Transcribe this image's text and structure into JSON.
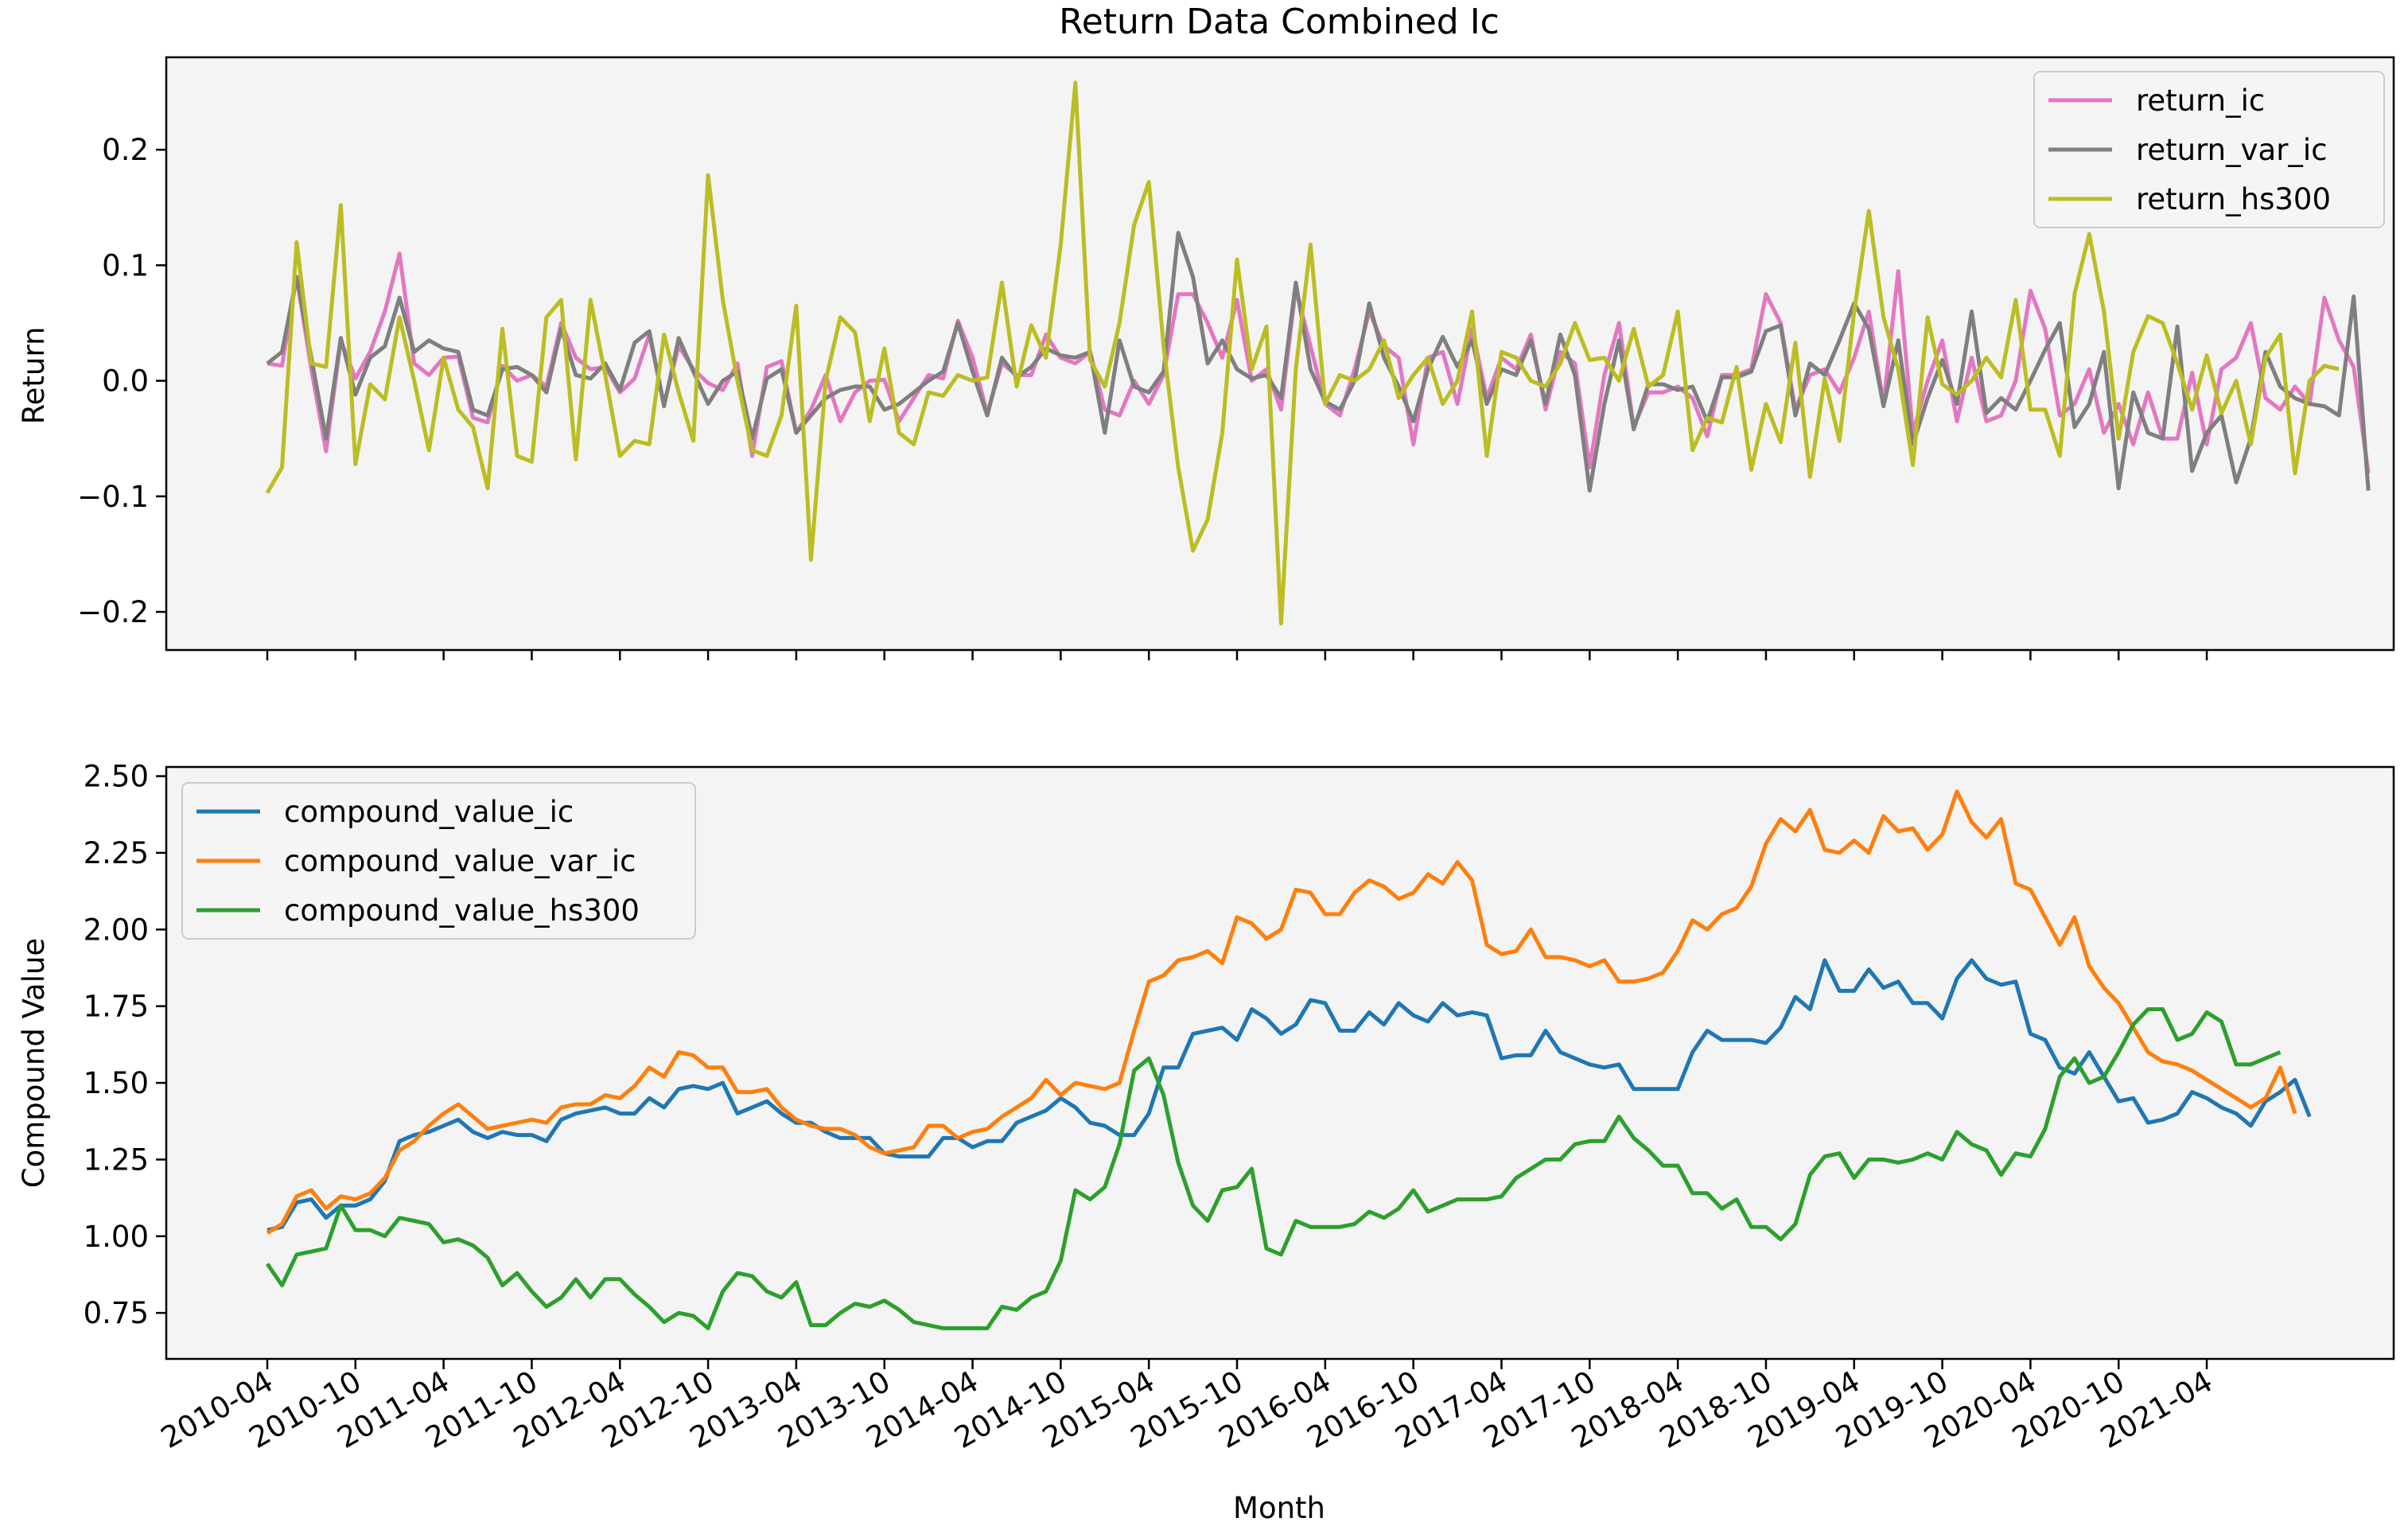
{
  "chart_data": {
    "type": "line",
    "x_axis_label": "Month",
    "x_tick_labels": [
      "2010-04",
      "2010-10",
      "2011-04",
      "2011-10",
      "2012-04",
      "2012-10",
      "2013-04",
      "2013-10",
      "2014-04",
      "2014-10",
      "2015-04",
      "2015-10",
      "2016-04",
      "2016-10",
      "2017-04",
      "2017-10",
      "2018-04",
      "2018-10",
      "2019-04",
      "2019-10",
      "2020-04",
      "2020-10",
      "2021-04"
    ],
    "x_start": "2010-04",
    "n_points": 140,
    "background": "#f4f4f4",
    "panels": [
      {
        "title": "Return Data Combined Ic",
        "ylabel": "Return",
        "ylim": [
          -0.233,
          0.28
        ],
        "yticks": [
          0.2,
          0.1,
          0.0,
          -0.1,
          -0.2
        ],
        "ytick_labels": [
          "0.2",
          "0.1",
          "0.0",
          "−0.1",
          "−0.2"
        ],
        "legend_position": "top-right",
        "series": [
          {
            "name": "return_ic",
            "color": "#e377c2",
            "values": [
              0.015,
              0.013,
              0.09,
              0.01,
              -0.061,
              0.035,
              0.002,
              0.025,
              0.06,
              0.11,
              0.015,
              0.005,
              0.02,
              0.021,
              -0.032,
              -0.036,
              0.013,
              0,
              0.005,
              -0.005,
              0.05,
              0.02,
              0.01,
              0.012,
              -0.01,
              0.002,
              0.04,
              -0.02,
              0.03,
              0.01,
              -0.002,
              -0.008,
              0.015,
              -0.065,
              0.012,
              0.017,
              -0.045,
              -0.025,
              0.005,
              -0.035,
              -0.01,
              0,
              0.001,
              -0.035,
              -0.015,
              0.005,
              0.002,
              0.052,
              0.02,
              -0.028,
              0.015,
              0.005,
              0.005,
              0.04,
              0.02,
              0.015,
              0.025,
              -0.025,
              -0.03,
              0,
              -0.02,
              0.005,
              0.075,
              0.075,
              0.05,
              0.02,
              0.07,
              0,
              0.01,
              -0.025,
              0.08,
              0.03,
              -0.02,
              -0.03,
              0.01,
              0.06,
              0.03,
              0.02,
              -0.055,
              0.02,
              0.025,
              -0.02,
              0.045,
              -0.015,
              0.02,
              0.01,
              0.04,
              -0.025,
              0.025,
              0.015,
              -0.075,
              0.005,
              0.05,
              -0.04,
              -0.01,
              -0.01,
              -0.005,
              -0.015,
              -0.048,
              0.005,
              0.005,
              0.01,
              0.075,
              0.05,
              -0.025,
              0.005,
              0.01,
              -0.01,
              0.02,
              0.06,
              -0.02,
              0.095,
              -0.045,
              0,
              0.035,
              -0.035,
              0.02,
              -0.035,
              -0.03,
              0,
              0.078,
              0.045,
              -0.03,
              -0.02,
              0.01,
              -0.045,
              -0.02,
              -0.055,
              -0.01,
              -0.05,
              -0.05,
              0.007,
              -0.055,
              0.01,
              0.02,
              0.05,
              -0.015,
              -0.025,
              -0.005,
              -0.02,
              0.072,
              0.035,
              0.012,
              -0.08
            ]
          },
          {
            "name": "return_var_ic",
            "color": "#7f7f7f",
            "values": [
              0.015,
              0.025,
              0.09,
              0.02,
              -0.05,
              0.037,
              -0.012,
              0.02,
              0.03,
              0.072,
              0.025,
              0.035,
              0.028,
              0.025,
              -0.025,
              -0.03,
              0.01,
              0.012,
              0.005,
              -0.01,
              0.045,
              0.005,
              0.002,
              0.015,
              -0.008,
              0.033,
              0.043,
              -0.022,
              0.037,
              0.008,
              -0.02,
              0.0,
              0.008,
              -0.05,
              0.002,
              0.01,
              -0.045,
              -0.03,
              -0.015,
              -0.008,
              -0.005,
              -0.005,
              -0.025,
              -0.02,
              -0.01,
              0.0,
              0.008,
              0.05,
              0.008,
              -0.03,
              0.02,
              0.003,
              0.012,
              0.028,
              0.022,
              0.02,
              0.025,
              -0.045,
              0.035,
              -0.005,
              -0.01,
              0.008,
              0.128,
              0.09,
              0.015,
              0.035,
              0.01,
              0.002,
              0.005,
              -0.015,
              0.085,
              0.01,
              -0.018,
              -0.025,
              0.0,
              0.067,
              0.02,
              -0.005,
              -0.035,
              0.01,
              0.038,
              0.012,
              0.035,
              -0.02,
              0.01,
              0.005,
              0.035,
              -0.02,
              0.04,
              0.005,
              -0.095,
              -0.02,
              0.035,
              -0.042,
              -0.003,
              -0.003,
              -0.008,
              -0.005,
              -0.035,
              0.003,
              0.003,
              0.008,
              0.043,
              0.048,
              -0.03,
              0.015,
              0.005,
              0.035,
              0.067,
              0.045,
              -0.022,
              0.035,
              -0.055,
              -0.015,
              0.018,
              -0.02,
              0.06,
              -0.028,
              -0.015,
              -0.025,
              0.0,
              0.027,
              0.05,
              -0.04,
              -0.02,
              0.025,
              -0.093,
              -0.01,
              -0.045,
              -0.05,
              0.047,
              -0.078,
              -0.045,
              -0.03,
              -0.088,
              -0.05,
              0.025,
              -0.005,
              -0.015,
              -0.02,
              -0.022,
              -0.03,
              0.073,
              -0.095
            ]
          },
          {
            "name": "return_hs300",
            "color": "#bcbd22",
            "values": [
              -0.097,
              -0.075,
              0.12,
              0.015,
              0.012,
              0.152,
              -0.072,
              -0.003,
              -0.016,
              0.055,
              0.0,
              -0.06,
              0.02,
              -0.025,
              -0.04,
              -0.093,
              0.045,
              -0.065,
              -0.07,
              0.055,
              0.07,
              -0.068,
              0.07,
              0.005,
              -0.065,
              -0.052,
              -0.055,
              0.04,
              -0.01,
              -0.052,
              0.178,
              0.07,
              0.0,
              -0.06,
              -0.065,
              -0.03,
              0.065,
              -0.155,
              0.0,
              0.055,
              0.042,
              -0.035,
              0.028,
              -0.045,
              -0.055,
              -0.01,
              -0.013,
              0.005,
              0.0,
              0.003,
              0.085,
              -0.005,
              0.048,
              0.02,
              0.118,
              0.258,
              0.018,
              -0.005,
              0.05,
              0.135,
              0.172,
              0.03,
              -0.075,
              -0.147,
              -0.12,
              -0.045,
              0.105,
              0.01,
              0.047,
              -0.21,
              0.01,
              0.118,
              -0.02,
              0.005,
              0.0,
              0.01,
              0.035,
              -0.015,
              0.005,
              0.02,
              -0.02,
              0.0,
              0.06,
              -0.065,
              0.025,
              0.02,
              0.0,
              -0.005,
              0.015,
              0.05,
              0.018,
              0.02,
              0.0,
              0.045,
              -0.005,
              0.005,
              0.06,
              -0.06,
              -0.032,
              -0.036,
              0.012,
              -0.077,
              -0.02,
              -0.053,
              0.033,
              -0.083,
              0.002,
              -0.052,
              0.06,
              0.147,
              0.055,
              0.01,
              -0.073,
              0.055,
              -0.003,
              -0.012,
              0.0,
              0.02,
              0.003,
              0.07,
              -0.025,
              -0.025,
              -0.065,
              0.075,
              0.127,
              0.06,
              -0.05,
              0.025,
              0.056,
              0.05,
              0.015,
              -0.025,
              0.022,
              -0.028,
              0.0,
              -0.055,
              0.02,
              0.04,
              -0.08,
              0.0,
              0.013,
              0.01
            ]
          }
        ]
      },
      {
        "title": "",
        "ylabel": "Compound Value",
        "ylim": [
          0.6,
          2.53
        ],
        "yticks": [
          2.5,
          2.25,
          2.0,
          1.75,
          1.5,
          1.25,
          1.0,
          0.75
        ],
        "ytick_labels": [
          "2.50",
          "2.25",
          "2.00",
          "1.75",
          "1.50",
          "1.25",
          "1.00",
          "0.75"
        ],
        "legend_position": "top-left",
        "series": [
          {
            "name": "compound_value_ic",
            "color": "#1f77b4",
            "values": [
              1.02,
              1.03,
              1.11,
              1.12,
              1.06,
              1.1,
              1.1,
              1.12,
              1.18,
              1.31,
              1.33,
              1.34,
              1.36,
              1.38,
              1.34,
              1.32,
              1.34,
              1.33,
              1.33,
              1.31,
              1.38,
              1.4,
              1.41,
              1.42,
              1.4,
              1.4,
              1.45,
              1.42,
              1.48,
              1.49,
              1.48,
              1.5,
              1.4,
              1.42,
              1.44,
              1.4,
              1.37,
              1.37,
              1.34,
              1.32,
              1.32,
              1.32,
              1.27,
              1.26,
              1.26,
              1.26,
              1.32,
              1.32,
              1.29,
              1.31,
              1.31,
              1.37,
              1.39,
              1.41,
              1.45,
              1.42,
              1.37,
              1.36,
              1.33,
              1.33,
              1.4,
              1.55,
              1.55,
              1.66,
              1.67,
              1.68,
              1.64,
              1.74,
              1.71,
              1.66,
              1.69,
              1.77,
              1.76,
              1.67,
              1.67,
              1.73,
              1.69,
              1.76,
              1.72,
              1.7,
              1.76,
              1.72,
              1.73,
              1.72,
              1.58,
              1.59,
              1.59,
              1.67,
              1.6,
              1.58,
              1.56,
              1.55,
              1.56,
              1.48,
              1.48,
              1.48,
              1.48,
              1.6,
              1.67,
              1.64,
              1.64,
              1.64,
              1.63,
              1.68,
              1.78,
              1.74,
              1.9,
              1.8,
              1.8,
              1.87,
              1.81,
              1.83,
              1.76,
              1.76,
              1.71,
              1.84,
              1.9,
              1.84,
              1.82,
              1.83,
              1.66,
              1.64,
              1.55,
              1.53,
              1.6,
              1.52,
              1.44,
              1.45,
              1.37,
              1.38,
              1.4,
              1.47,
              1.45,
              1.42,
              1.4,
              1.36,
              1.44,
              1.47,
              1.51,
              1.39
            ]
          },
          {
            "name": "compound_value_var_ic",
            "color": "#ff7f0e",
            "values": [
              1.01,
              1.04,
              1.13,
              1.15,
              1.09,
              1.13,
              1.12,
              1.14,
              1.19,
              1.28,
              1.31,
              1.36,
              1.4,
              1.43,
              1.39,
              1.35,
              1.36,
              1.37,
              1.38,
              1.37,
              1.42,
              1.43,
              1.43,
              1.46,
              1.45,
              1.49,
              1.55,
              1.52,
              1.6,
              1.59,
              1.55,
              1.55,
              1.47,
              1.47,
              1.48,
              1.42,
              1.38,
              1.36,
              1.35,
              1.35,
              1.33,
              1.29,
              1.27,
              1.28,
              1.29,
              1.36,
              1.36,
              1.32,
              1.34,
              1.35,
              1.39,
              1.42,
              1.45,
              1.51,
              1.46,
              1.5,
              1.49,
              1.48,
              1.5,
              1.67,
              1.83,
              1.85,
              1.9,
              1.91,
              1.93,
              1.89,
              2.04,
              2.02,
              1.97,
              2.0,
              2.13,
              2.12,
              2.05,
              2.05,
              2.12,
              2.16,
              2.14,
              2.1,
              2.12,
              2.18,
              2.15,
              2.22,
              2.16,
              1.95,
              1.92,
              1.93,
              2.0,
              1.91,
              1.91,
              1.9,
              1.88,
              1.9,
              1.83,
              1.83,
              1.84,
              1.86,
              1.93,
              2.03,
              2.0,
              2.05,
              2.07,
              2.14,
              2.28,
              2.36,
              2.32,
              2.39,
              2.26,
              2.25,
              2.29,
              2.25,
              2.37,
              2.32,
              2.33,
              2.26,
              2.31,
              2.45,
              2.35,
              2.3,
              2.36,
              2.15,
              2.13,
              2.04,
              1.95,
              2.04,
              1.88,
              1.81,
              1.76,
              1.68,
              1.6,
              1.57,
              1.56,
              1.54,
              1.51,
              1.48,
              1.45,
              1.42,
              1.45,
              1.55,
              1.4
            ]
          },
          {
            "name": "compound_value_hs300",
            "color": "#2ca02c",
            "values": [
              0.91,
              0.84,
              0.94,
              0.95,
              0.96,
              1.1,
              1.02,
              1.02,
              1.0,
              1.06,
              1.05,
              1.04,
              0.98,
              0.99,
              0.97,
              0.93,
              0.84,
              0.88,
              0.82,
              0.77,
              0.8,
              0.86,
              0.8,
              0.86,
              0.86,
              0.81,
              0.77,
              0.72,
              0.75,
              0.74,
              0.7,
              0.82,
              0.88,
              0.87,
              0.82,
              0.8,
              0.85,
              0.71,
              0.71,
              0.75,
              0.78,
              0.77,
              0.79,
              0.76,
              0.72,
              0.71,
              0.7,
              0.7,
              0.7,
              0.7,
              0.77,
              0.76,
              0.8,
              0.82,
              0.92,
              1.15,
              1.12,
              1.16,
              1.3,
              1.54,
              1.58,
              1.46,
              1.24,
              1.1,
              1.05,
              1.15,
              1.16,
              1.22,
              0.96,
              0.94,
              1.05,
              1.03,
              1.03,
              1.03,
              1.04,
              1.08,
              1.06,
              1.09,
              1.15,
              1.08,
              1.1,
              1.12,
              1.12,
              1.12,
              1.13,
              1.19,
              1.22,
              1.25,
              1.25,
              1.3,
              1.31,
              1.31,
              1.39,
              1.32,
              1.28,
              1.23,
              1.23,
              1.14,
              1.14,
              1.09,
              1.12,
              1.03,
              1.03,
              0.99,
              1.04,
              1.2,
              1.26,
              1.27,
              1.19,
              1.25,
              1.25,
              1.24,
              1.25,
              1.27,
              1.25,
              1.34,
              1.3,
              1.28,
              1.2,
              1.27,
              1.26,
              1.35,
              1.52,
              1.58,
              1.5,
              1.52,
              1.6,
              1.69,
              1.74,
              1.74,
              1.64,
              1.66,
              1.73,
              1.7,
              1.56,
              1.56,
              1.58,
              1.6
            ]
          }
        ]
      }
    ]
  }
}
